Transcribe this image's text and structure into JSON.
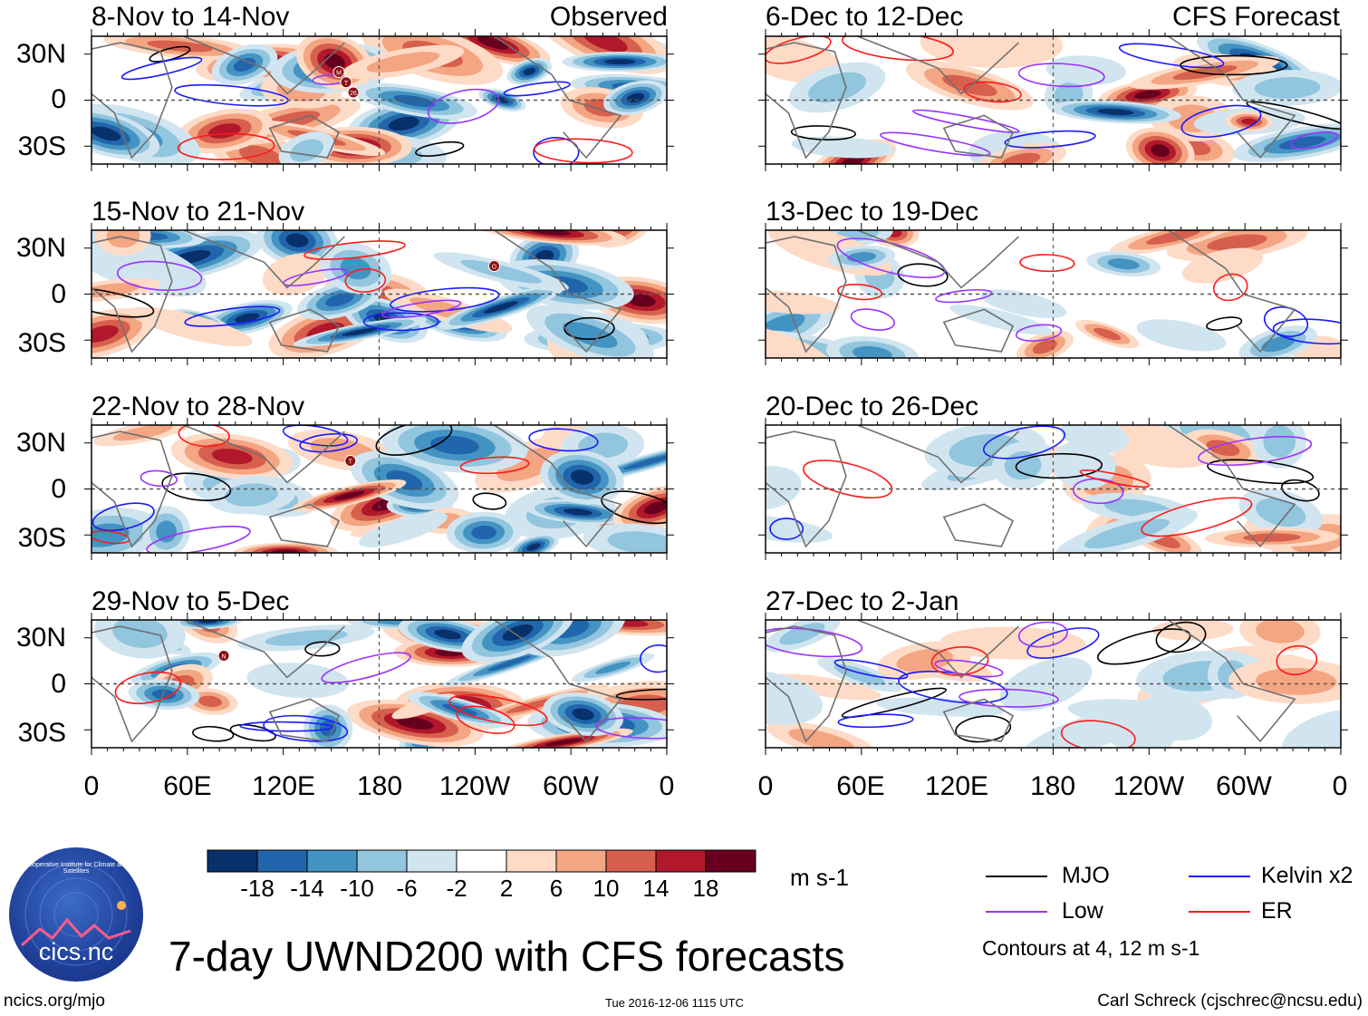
{
  "chart_data": {
    "type": "heatmap",
    "title": "7-day UWND200 with CFS forecasts",
    "variable": "UWND200",
    "units": "m s-1",
    "observed_label": "Observed",
    "forecast_label": "CFS Forecast",
    "x_ticks": [
      "0",
      "60E",
      "120E",
      "180",
      "120W",
      "60W",
      "0"
    ],
    "y_ticks": [
      "30N",
      "0",
      "30S"
    ],
    "panels": [
      {
        "column": "observed",
        "period": "8-Nov to 14-Nov",
        "storms": [
          "M",
          "T",
          "26"
        ]
      },
      {
        "column": "observed",
        "period": "15-Nov to 21-Nov",
        "storms": [
          "O"
        ]
      },
      {
        "column": "observed",
        "period": "22-Nov to 28-Nov",
        "storms": [
          "T"
        ]
      },
      {
        "column": "observed",
        "period": "29-Nov to 5-Dec",
        "storms": [
          "N"
        ]
      },
      {
        "column": "forecast",
        "period": "6-Dec to 12-Dec",
        "storms": []
      },
      {
        "column": "forecast",
        "period": "13-Dec to 19-Dec",
        "storms": []
      },
      {
        "column": "forecast",
        "period": "20-Dec to 26-Dec",
        "storms": []
      },
      {
        "column": "forecast",
        "period": "27-Dec to 2-Jan",
        "storms": []
      }
    ],
    "colorbar": {
      "ticks": [
        "-18",
        "-14",
        "-10",
        "-6",
        "-2",
        "2",
        "6",
        "10",
        "14",
        "18"
      ],
      "colors": [
        "#08306b",
        "#2166ac",
        "#4393c3",
        "#92c5de",
        "#d1e5f0",
        "#ffffff",
        "#fddbc7",
        "#f4a582",
        "#d6604d",
        "#b2182b",
        "#67001f"
      ]
    },
    "legend": [
      {
        "label": "MJO",
        "color": "#000000"
      },
      {
        "label": "Kelvin x2",
        "color": "#1a1aff"
      },
      {
        "label": "Low",
        "color": "#9933ff"
      },
      {
        "label": "ER",
        "color": "#ff1a1a"
      }
    ],
    "contour_note": "Contours at 4, 12 m s-1"
  },
  "footer": {
    "left": "ncics.org/mjo",
    "center": "Tue 2016-12-06 1115 UTC",
    "right": "Carl Schreck (cjschrec@ncsu.edu)"
  },
  "logo": {
    "text": "cics.nc",
    "arc_text": "Cooperative Institute for Climate and Satellites"
  }
}
